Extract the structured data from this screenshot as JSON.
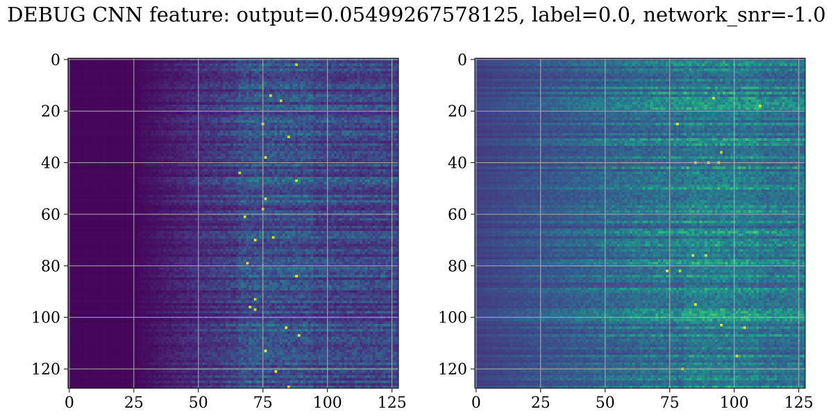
{
  "figure": {
    "title": "DEBUG CNN feature: output=0.05499267578125, label=0.0, network_snr=-1.0"
  },
  "chart_data": [
    {
      "type": "heatmap",
      "panel": "left",
      "colormap": "viridis",
      "rows": 128,
      "cols": 128,
      "xlim": [
        -0.5,
        127.5
      ],
      "ylim": [
        127.5,
        -0.5
      ],
      "x_ticks": [
        0,
        25,
        50,
        75,
        100,
        125
      ],
      "y_ticks": [
        0,
        20,
        40,
        60,
        80,
        100,
        120
      ],
      "grid": true,
      "title": "",
      "xlabel": "",
      "ylabel": "",
      "value_range": [
        0,
        1
      ],
      "pattern": {
        "dark_cols_end": 25,
        "ramp_start": 25,
        "ramp_end": 70,
        "peak_col": 80,
        "baseline": 0.02,
        "noise": 0.22,
        "bright_spots": [
          [
            2,
            88
          ],
          [
            14,
            78
          ],
          [
            16,
            82
          ],
          [
            25,
            75
          ],
          [
            30,
            85
          ],
          [
            38,
            76
          ],
          [
            44,
            66
          ],
          [
            47,
            88
          ],
          [
            54,
            76
          ],
          [
            58,
            75
          ],
          [
            61,
            68
          ],
          [
            69,
            79
          ],
          [
            70,
            72
          ],
          [
            79,
            69
          ],
          [
            84,
            88
          ],
          [
            93,
            72
          ],
          [
            96,
            70
          ],
          [
            97,
            72
          ],
          [
            104,
            84
          ],
          [
            107,
            89
          ],
          [
            113,
            76
          ],
          [
            121,
            80
          ],
          [
            127,
            85
          ]
        ]
      }
    },
    {
      "type": "heatmap",
      "panel": "right",
      "colormap": "viridis",
      "rows": 128,
      "cols": 128,
      "xlim": [
        -0.5,
        127.5
      ],
      "ylim": [
        127.5,
        -0.5
      ],
      "x_ticks": [
        0,
        25,
        50,
        75,
        100,
        125
      ],
      "y_ticks": [
        0,
        20,
        40,
        60,
        80,
        100,
        120
      ],
      "grid": true,
      "title": "",
      "xlabel": "",
      "ylabel": "",
      "value_range": [
        0,
        1
      ],
      "pattern": {
        "dark_cols_end": 0,
        "ramp_start": 0,
        "ramp_end": 70,
        "peak_col": 95,
        "baseline": 0.22,
        "noise": 0.28,
        "bright_spots": [
          [
            15,
            92
          ],
          [
            18,
            110
          ],
          [
            25,
            78
          ],
          [
            36,
            95
          ],
          [
            40,
            85
          ],
          [
            40,
            90
          ],
          [
            40,
            94
          ],
          [
            76,
            84
          ],
          [
            76,
            89
          ],
          [
            82,
            74
          ],
          [
            82,
            79
          ],
          [
            95,
            85
          ],
          [
            103,
            95
          ],
          [
            104,
            104
          ],
          [
            115,
            101
          ],
          [
            120,
            80
          ]
        ]
      }
    }
  ]
}
